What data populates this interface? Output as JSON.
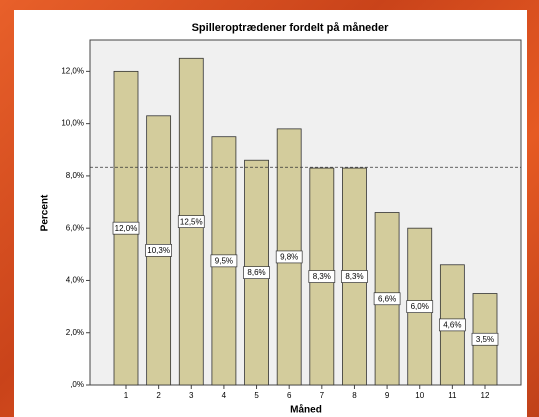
{
  "chart_data": {
    "type": "bar",
    "title": "Spilleroptrædener fordelt på måneder",
    "x_label": "Måned",
    "y_label": "Percent",
    "categories": [
      "1",
      "2",
      "3",
      "4",
      "5",
      "6",
      "7",
      "8",
      "9",
      "10",
      "11",
      "12"
    ],
    "values": [
      12.0,
      10.3,
      12.5,
      9.5,
      8.6,
      9.8,
      8.3,
      8.3,
      6.6,
      6.0,
      4.6,
      3.5
    ],
    "value_labels": [
      "12,0%",
      "10,3%",
      "12,5%",
      "9,5%",
      "8,6%",
      "9,8%",
      "8,3%",
      "8,3%",
      "6,6%",
      "6,0%",
      "4,6%",
      "3,5%"
    ],
    "color": "#d3cc9c",
    "reference_line": 8.33,
    "ylim": [
      0,
      13.2
    ],
    "yticks": [
      {
        "value": 0,
        "label": ",0%"
      },
      {
        "value": 2,
        "label": "2,0%"
      },
      {
        "value": 4,
        "label": "4,0%"
      },
      {
        "value": 6,
        "label": "6,0%"
      },
      {
        "value": 8,
        "label": "8,0%"
      },
      {
        "value": 10,
        "label": "10,0%"
      },
      {
        "value": 12,
        "label": "12,0%"
      }
    ]
  }
}
